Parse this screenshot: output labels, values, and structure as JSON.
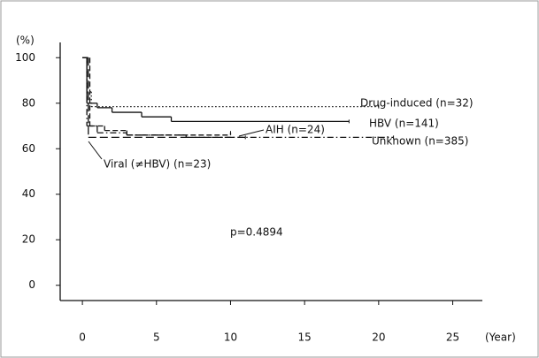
{
  "chart_data": {
    "type": "step",
    "y_unit": "(%)",
    "x_unit": "(Year)",
    "annotation": "p=0.4894",
    "xlim": [
      -1.5,
      27
    ],
    "ylim": [
      -6.7,
      106.7
    ],
    "xticks": [
      0,
      5,
      10,
      15,
      20,
      25
    ],
    "yticks": [
      0,
      20,
      40,
      60,
      80,
      100
    ],
    "series": [
      {
        "name": "Drug-induced (n=32)",
        "color": "#111111",
        "style": "dotted",
        "x": [
          0,
          0.3,
          0.6,
          20
        ],
        "values": [
          100,
          85,
          78.5,
          78.5
        ]
      },
      {
        "name": "HBV (n=141)",
        "color": "#111111",
        "style": "solid",
        "x": [
          0,
          0.3,
          1,
          2,
          4,
          6,
          18
        ],
        "values": [
          100,
          80,
          78,
          76,
          74,
          72,
          72
        ]
      },
      {
        "name": "AIH (n=24)",
        "color": "#111111",
        "style": "dashed",
        "x": [
          0,
          0.5,
          1.5,
          3,
          10
        ],
        "values": [
          100,
          70,
          68,
          66,
          67
        ]
      },
      {
        "name": "Unknown (n=385)",
        "color": "#111111",
        "style": "dashdot",
        "x": [
          0,
          0.3,
          1,
          3,
          7,
          21
        ],
        "values": [
          100,
          70,
          67,
          66,
          65,
          65
        ]
      },
      {
        "name": "Viral (≠HBV) (n=23)",
        "color": "#111111",
        "style": "longdash",
        "x": [
          0,
          0.4,
          11
        ],
        "values": [
          100,
          65,
          65
        ]
      }
    ]
  }
}
